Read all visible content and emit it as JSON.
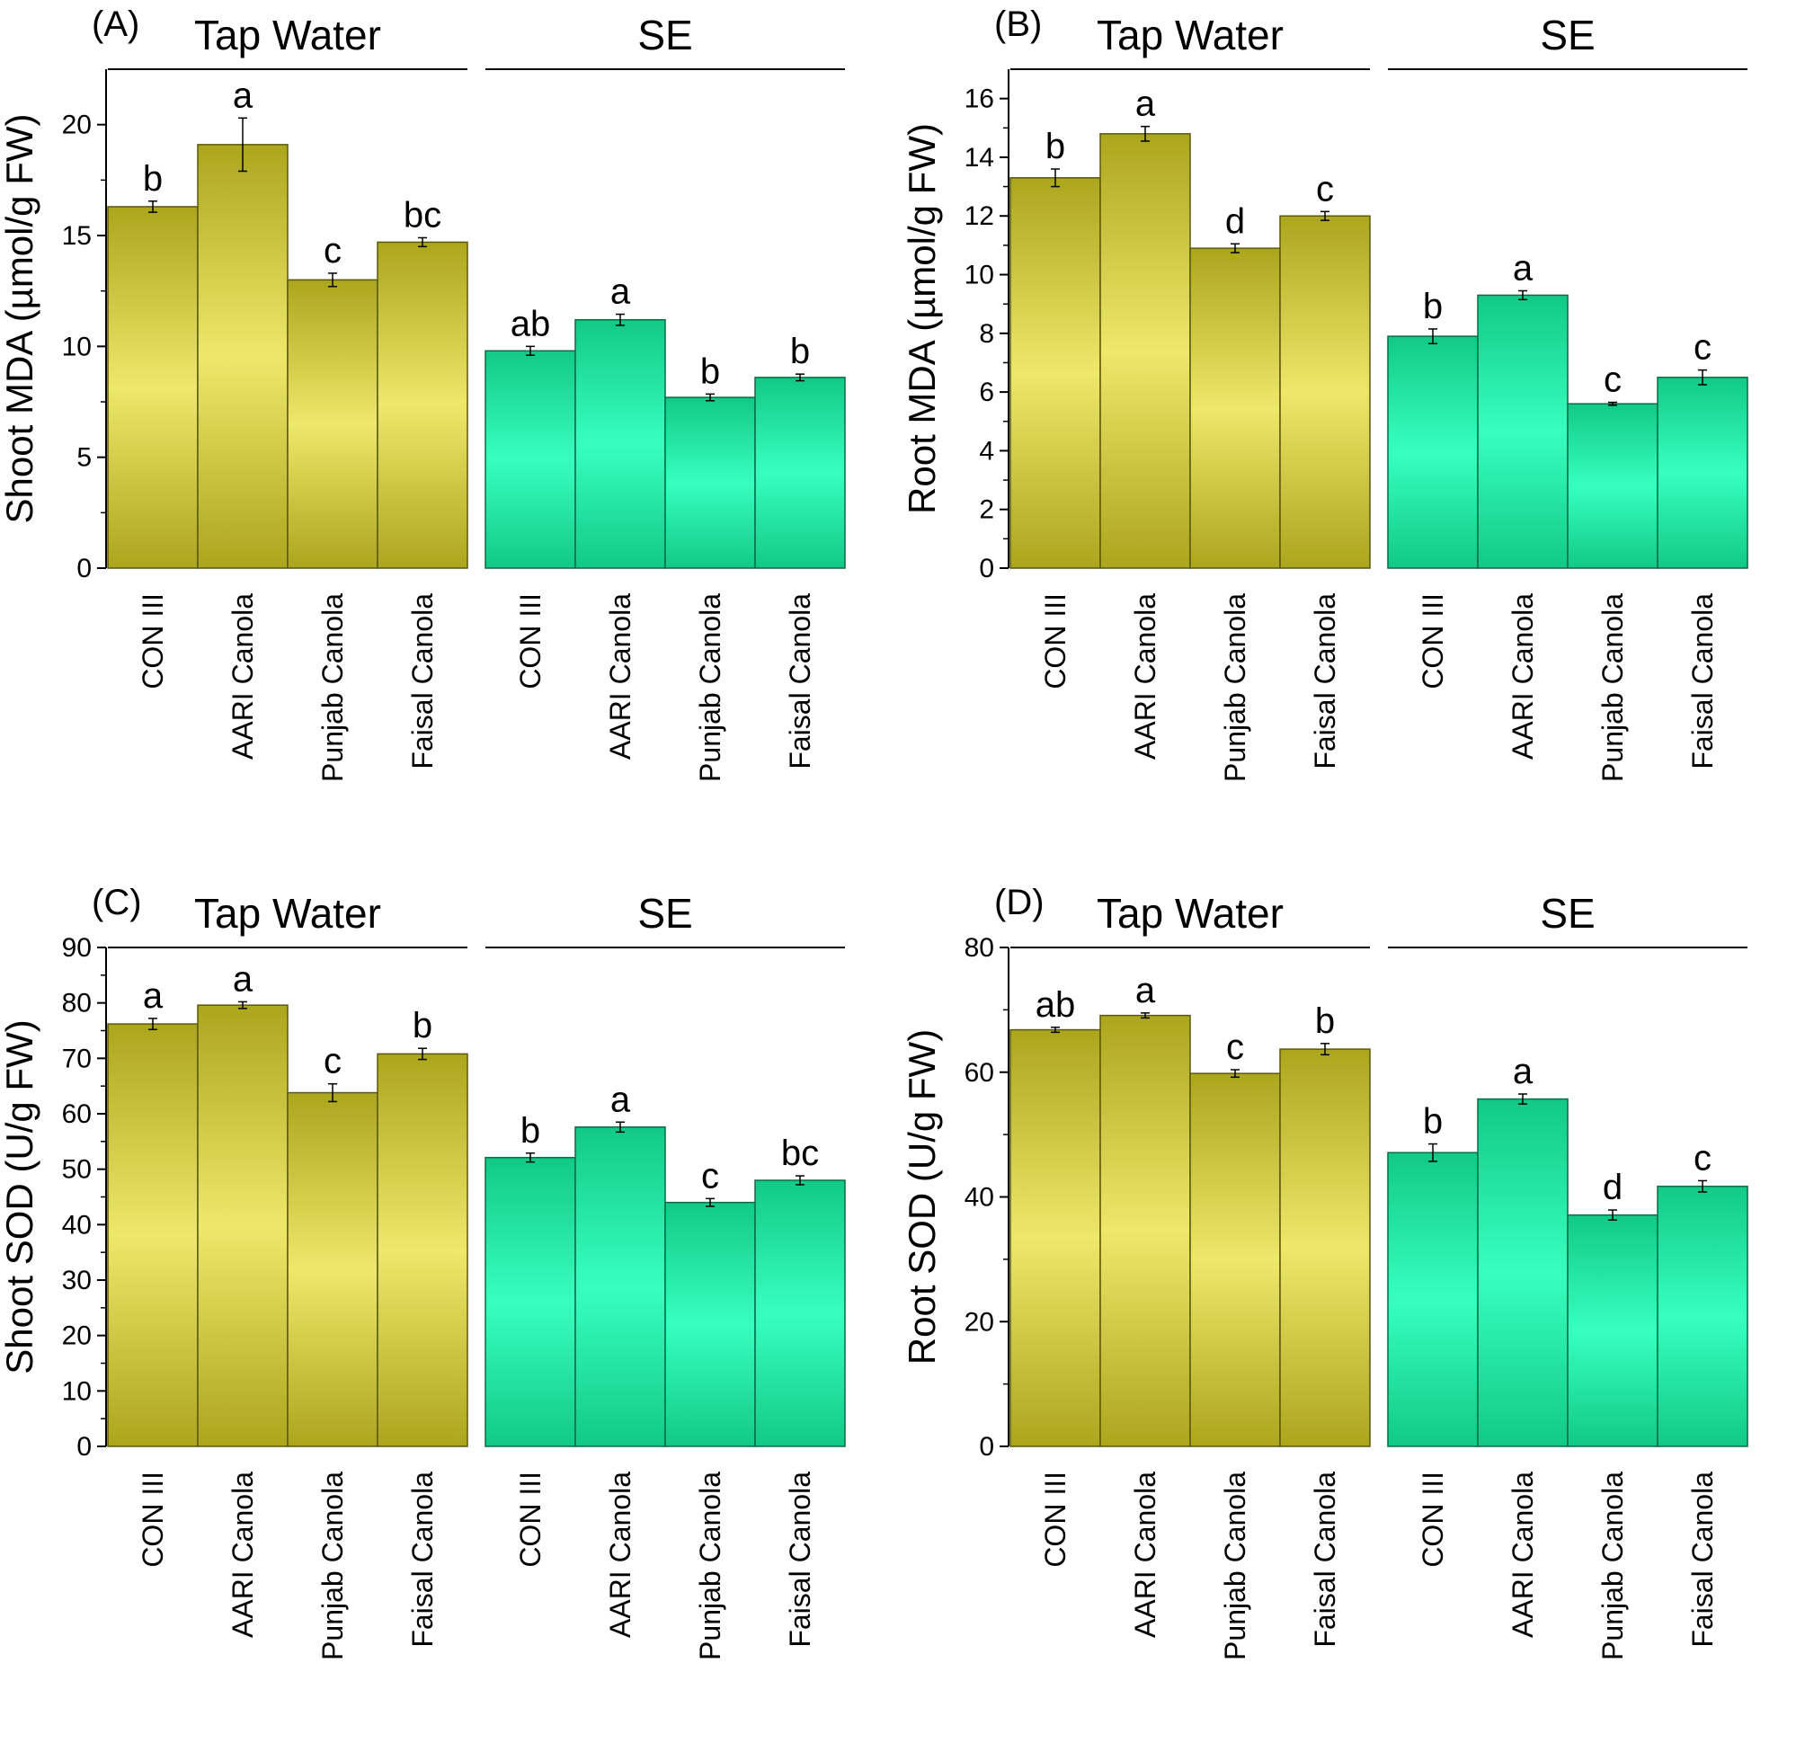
{
  "colors": {
    "tap_dark": "#aba61c",
    "tap_light": "#ede86a",
    "se_dark": "#12c987",
    "se_light": "#37ffbf"
  },
  "chart_data": [
    {
      "type": "bar",
      "panel_label": "(A)",
      "ylabel": "Shoot MDA (µmol/g FW)",
      "ylim": [
        0,
        22.5
      ],
      "yticks": [
        0,
        5,
        10,
        15,
        20
      ],
      "groups": [
        "Tap Water",
        "SE"
      ],
      "categories": [
        "CON III",
        "AARI Canola",
        "Punjab Canola",
        "Faisal Canola"
      ],
      "series": [
        {
          "name": "Tap Water",
          "values": [
            16.3,
            19.1,
            13.0,
            14.7
          ],
          "errors": [
            0.25,
            1.2,
            0.3,
            0.2
          ],
          "letters": [
            "b",
            "a",
            "c",
            "bc"
          ]
        },
        {
          "name": "SE",
          "values": [
            9.8,
            11.2,
            7.7,
            8.6
          ],
          "errors": [
            0.2,
            0.25,
            0.15,
            0.15
          ],
          "letters": [
            "ab",
            "a",
            "b",
            "b"
          ]
        }
      ]
    },
    {
      "type": "bar",
      "panel_label": "(B)",
      "ylabel": "Root MDA (µmol/g FW)",
      "ylim": [
        0,
        17
      ],
      "yticks": [
        0,
        2,
        4,
        6,
        8,
        10,
        12,
        14,
        16
      ],
      "groups": [
        "Tap Water",
        "SE"
      ],
      "categories": [
        "CON III",
        "AARI Canola",
        "Punjab Canola",
        "Faisal Canola"
      ],
      "series": [
        {
          "name": "Tap Water",
          "values": [
            13.3,
            14.8,
            10.9,
            12.0
          ],
          "errors": [
            0.3,
            0.25,
            0.15,
            0.15
          ],
          "letters": [
            "b",
            "a",
            "d",
            "c"
          ]
        },
        {
          "name": "SE",
          "values": [
            7.9,
            9.3,
            5.6,
            6.5
          ],
          "errors": [
            0.25,
            0.15,
            0.05,
            0.25
          ],
          "letters": [
            "b",
            "a",
            "c",
            "c"
          ]
        }
      ]
    },
    {
      "type": "bar",
      "panel_label": "(C)",
      "ylabel": "Shoot SOD (U/g FW)",
      "ylim": [
        0,
        90
      ],
      "yticks": [
        0,
        10,
        20,
        30,
        40,
        50,
        60,
        70,
        80,
        90
      ],
      "groups": [
        "Tap Water",
        "SE"
      ],
      "categories": [
        "CON III",
        "AARI Canola",
        "Punjab Canola",
        "Faisal Canola"
      ],
      "series": [
        {
          "name": "Tap Water",
          "values": [
            76.2,
            79.6,
            63.8,
            70.8
          ],
          "errors": [
            1.0,
            0.6,
            1.6,
            1.0
          ],
          "letters": [
            "a",
            "a",
            "c",
            "b"
          ]
        },
        {
          "name": "SE",
          "values": [
            52.1,
            57.6,
            44.0,
            48.0
          ],
          "errors": [
            0.8,
            0.9,
            0.7,
            0.8
          ],
          "letters": [
            "b",
            "a",
            "c",
            "bc"
          ]
        }
      ]
    },
    {
      "type": "bar",
      "panel_label": "(D)",
      "ylabel": "Root SOD (U/g FW)",
      "ylim": [
        0,
        80
      ],
      "yticks": [
        0,
        20,
        40,
        60,
        80
      ],
      "groups": [
        "Tap Water",
        "SE"
      ],
      "categories": [
        "CON III",
        "AARI Canola",
        "Punjab Canola",
        "Faisal Canola"
      ],
      "series": [
        {
          "name": "Tap Water",
          "values": [
            66.8,
            69.1,
            59.8,
            63.7
          ],
          "errors": [
            0.4,
            0.4,
            0.6,
            0.9
          ],
          "letters": [
            "ab",
            "a",
            "c",
            "b"
          ]
        },
        {
          "name": "SE",
          "values": [
            47.1,
            55.7,
            37.1,
            41.7
          ],
          "errors": [
            1.4,
            0.8,
            0.8,
            0.9
          ],
          "letters": [
            "b",
            "a",
            "d",
            "c"
          ]
        }
      ]
    }
  ]
}
